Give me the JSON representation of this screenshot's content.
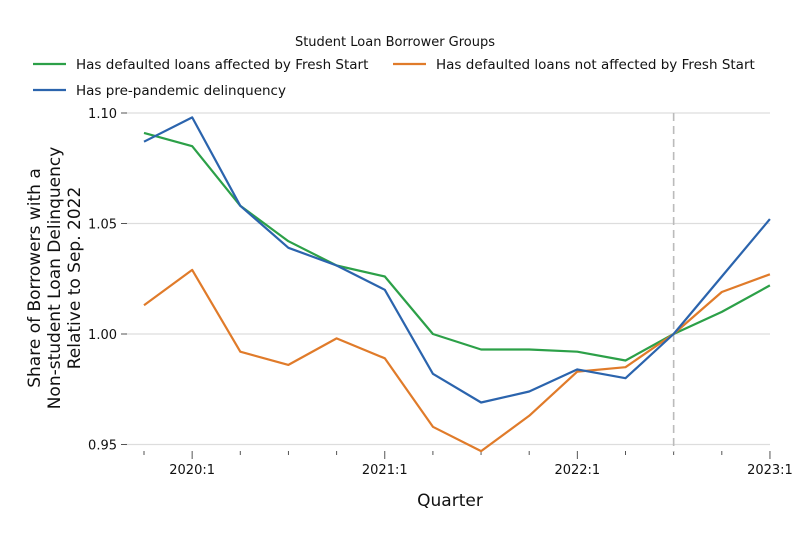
{
  "chart_data": {
    "type": "line",
    "title": "",
    "xlabel": "Quarter",
    "ylabel": "Share of Borrowers with a Non-student Loan Delinquency Relative to Sep. 2022",
    "ylabel_lines": [
      "Share of Borrowers with a",
      "Non-student Loan Delinquency",
      "Relative to Sep. 2022"
    ],
    "legend_title": "Student Loan Borrower Groups",
    "legend_position": "top",
    "x": [
      "2019:4",
      "2020:1",
      "2020:2",
      "2020:3",
      "2020:4",
      "2021:1",
      "2021:2",
      "2021:3",
      "2021:4",
      "2022:1",
      "2022:2",
      "2022:3",
      "2022:4",
      "2023:1"
    ],
    "x_tick_labels": [
      "2020:1",
      "2021:1",
      "2022:1",
      "2023:1"
    ],
    "y_ticks": [
      0.95,
      1.0,
      1.05,
      1.1
    ],
    "y_tick_labels": [
      "0.95",
      "1.00",
      "1.05",
      "1.10"
    ],
    "ylim": [
      0.947,
      1.1
    ],
    "grid": "horizontal",
    "reference_line": {
      "x": "2022:3",
      "style": "dashed",
      "color": "#bbbbbb"
    },
    "series": [
      {
        "name": "Has defaulted loans affected by Fresh Start",
        "color": "#2ca048",
        "values": [
          1.091,
          1.085,
          1.058,
          1.042,
          1.031,
          1.026,
          1.0,
          0.993,
          0.993,
          0.992,
          0.988,
          1.0,
          1.01,
          1.022
        ]
      },
      {
        "name": "Has defaulted loans not affected by Fresh Start",
        "color": "#e07b2a",
        "values": [
          1.013,
          1.029,
          0.992,
          0.986,
          0.998,
          0.989,
          0.958,
          0.947,
          0.963,
          0.983,
          0.985,
          1.0,
          1.019,
          1.027
        ]
      },
      {
        "name": "Has pre-pandemic delinquency",
        "color": "#2b64ad",
        "values": [
          1.087,
          1.098,
          1.058,
          1.039,
          1.031,
          1.02,
          0.982,
          0.969,
          0.974,
          0.984,
          0.98,
          1.0,
          1.026,
          1.052
        ]
      }
    ]
  }
}
